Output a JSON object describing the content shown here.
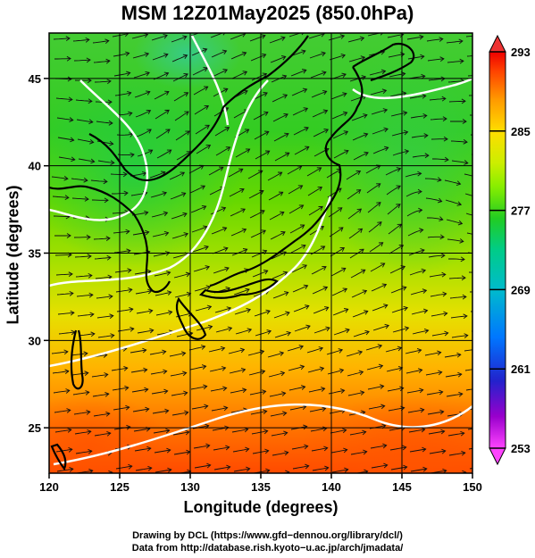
{
  "title": "MSM 12Z01May2025 (850.0hPa)",
  "x_axis": {
    "label": "Longitude (degrees)",
    "range": [
      120,
      150
    ],
    "ticks": [
      120,
      125,
      130,
      135,
      140,
      145,
      150
    ]
  },
  "y_axis": {
    "label": "Latitude  (degrees)",
    "range": [
      22.4,
      47.6
    ],
    "ticks": [
      25,
      30,
      35,
      40,
      45
    ]
  },
  "colorbar": {
    "min": 253,
    "max": 293,
    "tick_labels": [
      "293",
      "285",
      "277",
      "269",
      "261",
      "253"
    ],
    "tick_values": [
      293,
      285,
      277,
      269,
      261,
      253
    ],
    "colors_low_to_high": [
      "#ff44ff",
      "#8800cc",
      "#2222cc",
      "#0077ff",
      "#00bbcc",
      "#00cc88",
      "#22cc22",
      "#88ee00",
      "#ccee00",
      "#ffdd00",
      "#ff9900",
      "#ff4400",
      "#ee0000"
    ]
  },
  "map": {
    "type": "850 hPa temperature with wind streamlines",
    "field_colors": {
      "cold": "#22cc22",
      "mild": "#99dd00",
      "warm": "#ffcc00",
      "hot": "#ff6600"
    },
    "contour_color": "#ffffff",
    "coastline_color": "#000000",
    "grid": true
  },
  "credits": {
    "line1": "Drawing by DCL (https://www.gfd−dennou.org/library/dcl/)",
    "line2": "Data from http://database.rish.kyoto−u.ac.jp/arch/jmadata/"
  }
}
